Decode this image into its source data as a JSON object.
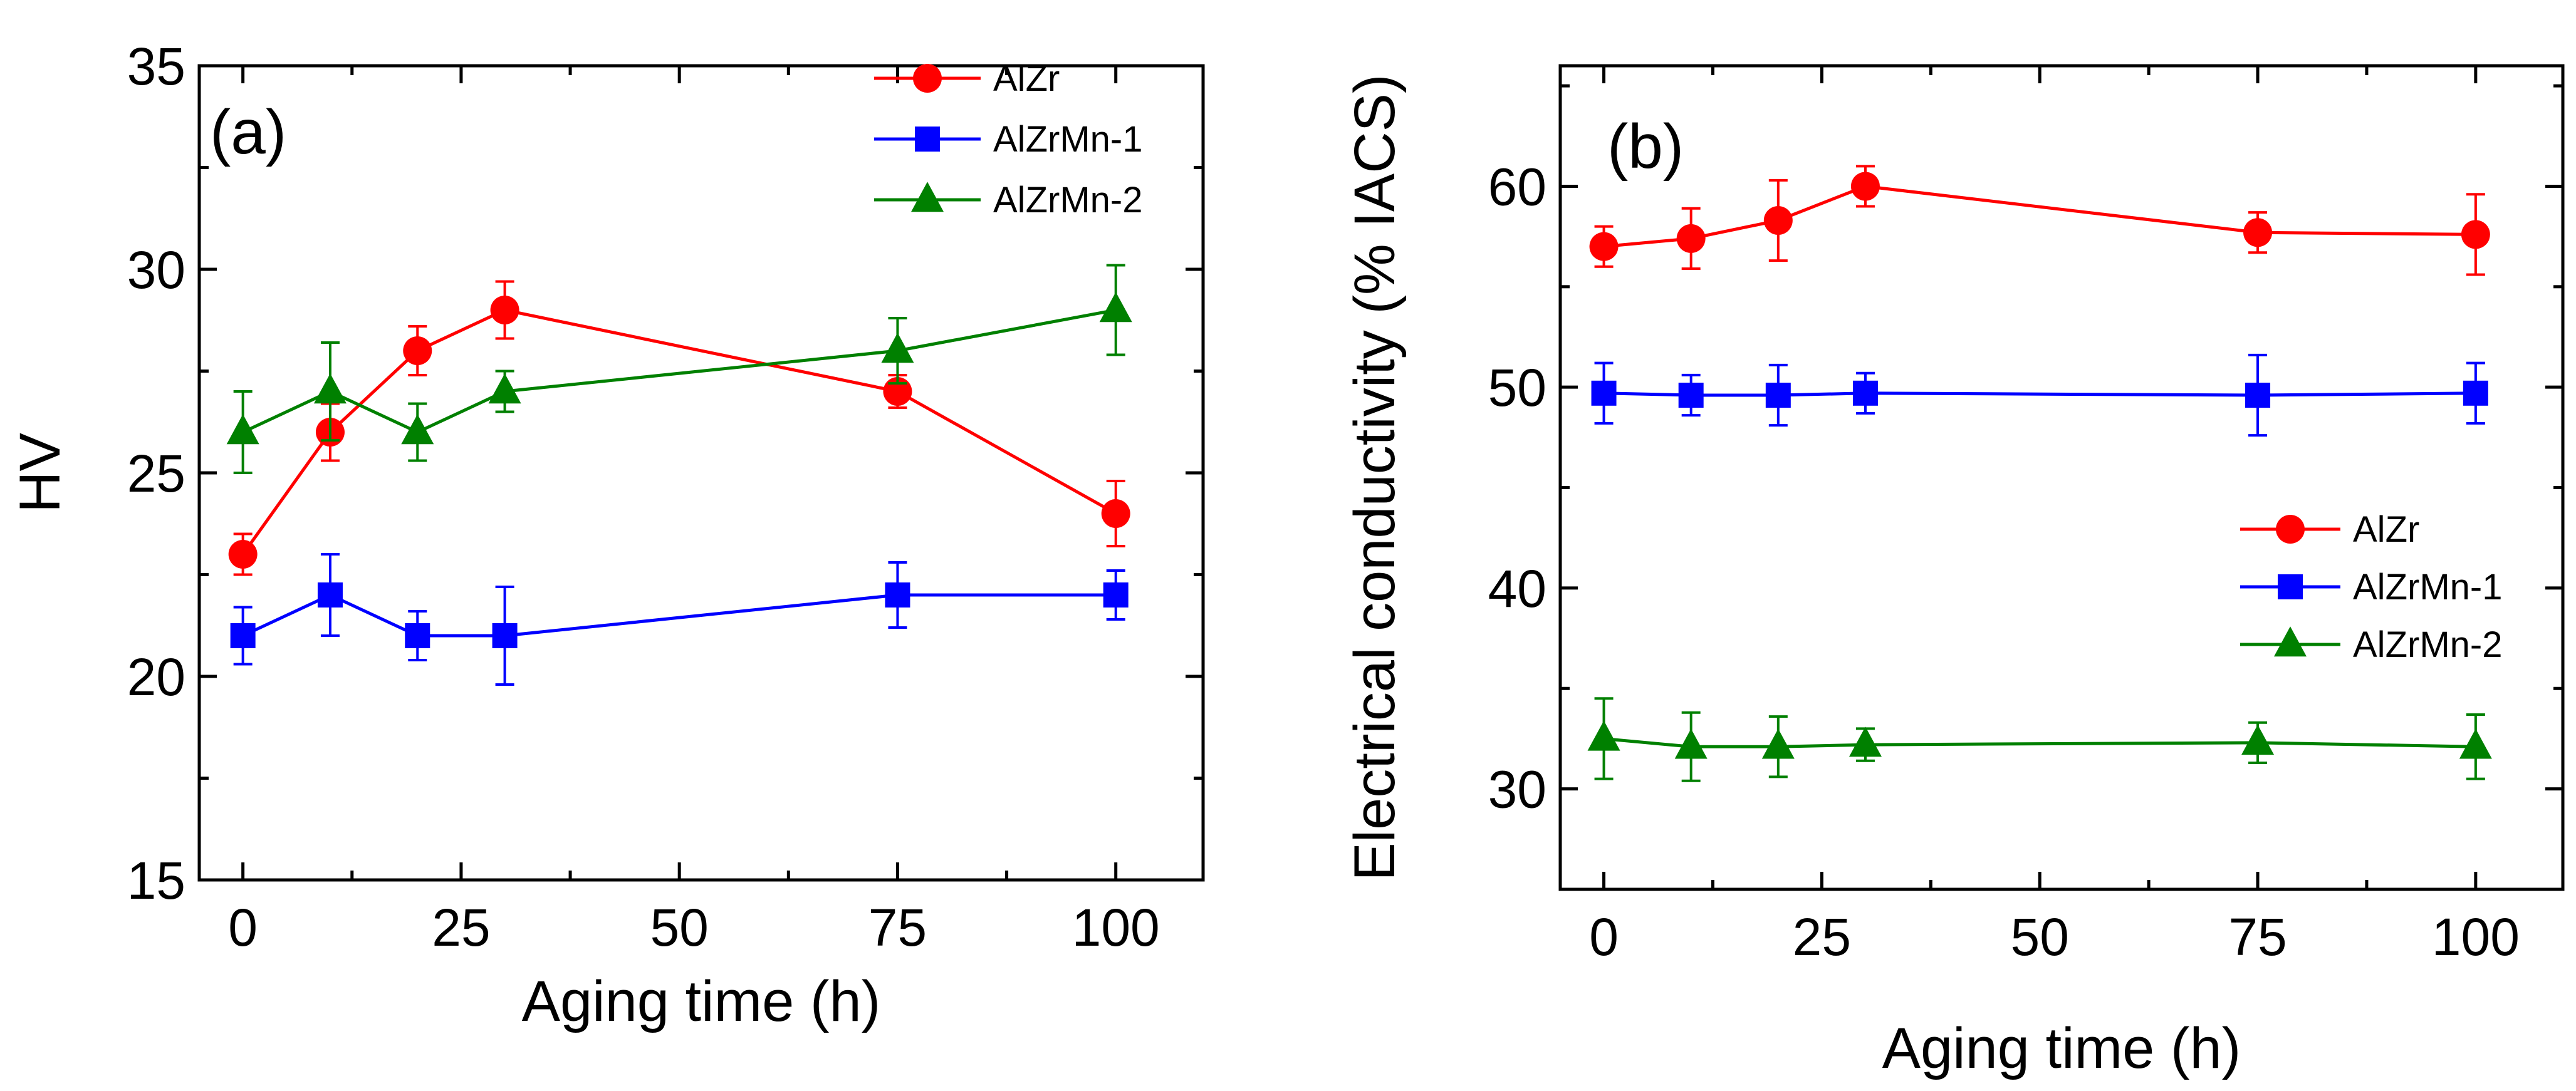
{
  "chart_data": [
    {
      "type": "line",
      "panel_label": "(a)",
      "xlabel": "Aging time (h)",
      "ylabel": "HV",
      "xlim": [
        -5,
        110
      ],
      "ylim": [
        15,
        35
      ],
      "xticks": [
        0,
        25,
        50,
        75,
        100
      ],
      "yticks": [
        15,
        20,
        25,
        30,
        35
      ],
      "x": [
        0,
        10,
        20,
        30,
        75,
        100
      ],
      "legend_position": "top-right",
      "series": [
        {
          "name": "AlZr",
          "color": "#ff0000",
          "marker": "circle",
          "values": [
            23,
            26,
            28,
            29,
            27,
            24
          ],
          "errors": [
            0.5,
            0.7,
            0.6,
            0.7,
            0.4,
            0.8
          ]
        },
        {
          "name": "AlZrMn-1",
          "color": "#0000ff",
          "marker": "square",
          "values": [
            21,
            22,
            21,
            21,
            22,
            22
          ],
          "errors": [
            0.7,
            1.0,
            0.6,
            1.2,
            0.8,
            0.6
          ]
        },
        {
          "name": "AlZrMn-2",
          "color": "#008000",
          "marker": "triangle",
          "values": [
            26,
            27,
            26,
            27,
            28,
            29
          ],
          "errors": [
            1.0,
            1.2,
            0.7,
            0.5,
            0.8,
            1.1
          ]
        }
      ]
    },
    {
      "type": "line",
      "panel_label": "(b)",
      "xlabel": "Aging time (h)",
      "ylabel": "Electrical conductivity (% IACS)",
      "xlim": [
        -5,
        110
      ],
      "ylim": [
        25,
        66
      ],
      "xticks": [
        0,
        25,
        50,
        75,
        100
      ],
      "yticks": [
        30,
        40,
        50,
        60
      ],
      "x": [
        0,
        10,
        20,
        30,
        75,
        100
      ],
      "legend_position": "center-right",
      "series": [
        {
          "name": "AlZr",
          "color": "#ff0000",
          "marker": "circle",
          "values": [
            57.0,
            57.4,
            58.3,
            60.0,
            57.7,
            57.6
          ],
          "errors": [
            1.0,
            1.5,
            2.0,
            1.0,
            1.0,
            2.0
          ]
        },
        {
          "name": "AlZrMn-1",
          "color": "#0000ff",
          "marker": "square",
          "values": [
            49.7,
            49.6,
            49.6,
            49.7,
            49.6,
            49.7
          ],
          "errors": [
            1.5,
            1.0,
            1.5,
            1.0,
            2.0,
            1.5
          ]
        },
        {
          "name": "AlZrMn-2",
          "color": "#008000",
          "marker": "triangle",
          "values": [
            32.5,
            32.1,
            32.1,
            32.2,
            32.3,
            32.1
          ],
          "errors": [
            2.0,
            1.7,
            1.5,
            0.8,
            1.0,
            1.6
          ]
        }
      ]
    }
  ]
}
